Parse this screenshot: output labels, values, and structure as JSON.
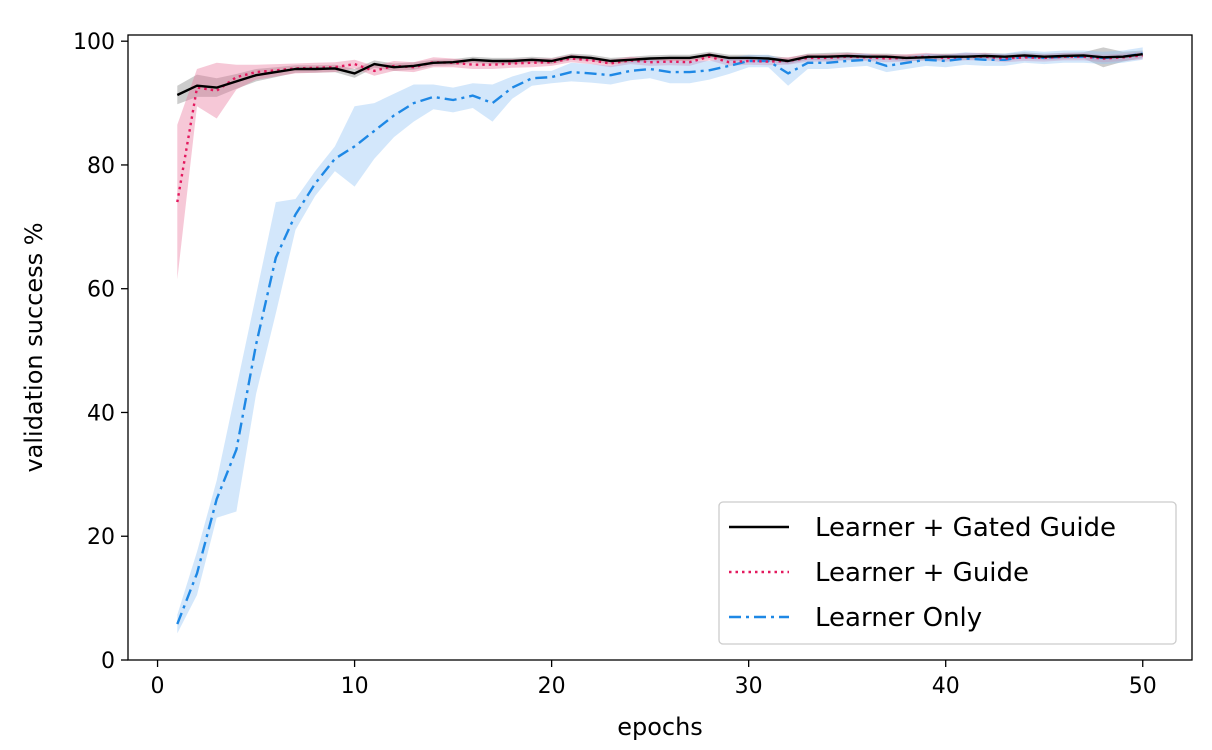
{
  "chart_data": {
    "type": "line",
    "title": "",
    "xlabel": "epochs",
    "ylabel": "validation success %",
    "xlim": [
      -1.5,
      52.5
    ],
    "ylim": [
      0,
      101
    ],
    "xticks": [
      0,
      10,
      20,
      30,
      40,
      50
    ],
    "yticks": [
      0,
      20,
      40,
      60,
      80,
      100
    ],
    "grid": false,
    "legend_position": "lower-right",
    "series": [
      {
        "name": "Learner + Gated Guide",
        "color": "#000000",
        "band_color": "#808080",
        "style": "solid",
        "x": [
          1,
          2,
          3,
          4,
          5,
          6,
          7,
          8,
          9,
          10,
          11,
          12,
          13,
          14,
          15,
          16,
          17,
          18,
          19,
          20,
          21,
          22,
          23,
          24,
          25,
          26,
          27,
          28,
          29,
          30,
          31,
          32,
          33,
          34,
          35,
          36,
          37,
          38,
          39,
          40,
          41,
          42,
          43,
          44,
          45,
          46,
          47,
          48,
          49,
          50
        ],
        "y": [
          91.3,
          92.8,
          92.5,
          93.5,
          94.5,
          95.0,
          95.5,
          95.5,
          95.6,
          94.8,
          96.3,
          95.8,
          96.0,
          96.5,
          96.6,
          97.0,
          96.8,
          96.8,
          97.0,
          96.8,
          97.5,
          97.3,
          96.8,
          97.0,
          97.2,
          97.3,
          97.3,
          97.8,
          97.3,
          97.3,
          97.2,
          96.8,
          97.5,
          97.5,
          97.6,
          97.5,
          97.5,
          97.3,
          97.4,
          97.5,
          97.5,
          97.6,
          97.5,
          97.7,
          97.5,
          97.6,
          97.7,
          97.4,
          97.5,
          97.9
        ],
        "band": [
          1.5,
          1.8,
          1.5,
          1.2,
          1.0,
          0.8,
          0.6,
          0.6,
          0.6,
          0.7,
          0.6,
          0.6,
          0.6,
          0.5,
          0.5,
          0.5,
          0.5,
          0.5,
          0.5,
          0.5,
          0.5,
          0.5,
          0.5,
          0.5,
          0.5,
          0.5,
          0.5,
          0.5,
          0.5,
          0.5,
          0.5,
          0.5,
          0.5,
          0.6,
          0.6,
          0.5,
          0.5,
          0.5,
          0.5,
          0.5,
          0.5,
          0.5,
          0.5,
          0.5,
          0.5,
          0.5,
          0.5,
          1.6,
          0.8,
          0.6
        ]
      },
      {
        "name": "Learner + Guide",
        "color": "#e3195e",
        "band_color": "#e8769c",
        "style": "dotted",
        "x": [
          1,
          2,
          3,
          4,
          5,
          6,
          7,
          8,
          9,
          10,
          11,
          12,
          13,
          14,
          15,
          16,
          17,
          18,
          19,
          20,
          21,
          22,
          23,
          24,
          25,
          26,
          27,
          28,
          29,
          30,
          31,
          32,
          33,
          34,
          35,
          36,
          37,
          38,
          39,
          40,
          41,
          42,
          43,
          44,
          45,
          46,
          47,
          48,
          49,
          50
        ],
        "y": [
          74.0,
          92.5,
          92.0,
          94.2,
          95.0,
          95.3,
          95.6,
          95.7,
          95.8,
          96.3,
          95.2,
          96.0,
          95.8,
          96.6,
          96.5,
          96.2,
          96.2,
          96.4,
          96.5,
          96.6,
          97.2,
          96.9,
          96.4,
          96.9,
          96.6,
          96.7,
          96.6,
          97.5,
          96.6,
          96.8,
          96.7,
          96.8,
          97.3,
          97.3,
          97.5,
          97.4,
          97.2,
          97.3,
          97.5,
          97.3,
          97.5,
          97.5,
          97.2,
          97.4,
          97.3,
          97.5,
          97.5,
          97.2,
          97.4,
          97.7
        ],
        "band": [
          12.5,
          3.0,
          4.5,
          2.0,
          1.2,
          1.0,
          0.8,
          0.8,
          0.8,
          0.7,
          0.8,
          0.8,
          0.8,
          0.8,
          0.7,
          0.7,
          0.7,
          0.7,
          0.7,
          0.6,
          0.6,
          0.6,
          0.6,
          0.6,
          0.6,
          0.6,
          0.6,
          0.6,
          0.6,
          0.6,
          0.6,
          0.6,
          0.6,
          0.6,
          0.6,
          0.6,
          0.6,
          0.6,
          0.6,
          0.6,
          0.6,
          0.6,
          0.6,
          0.6,
          0.6,
          0.6,
          0.6,
          0.6,
          0.6,
          0.6
        ]
      },
      {
        "name": "Learner Only",
        "color": "#1e88e5",
        "band_color": "#90c4f4",
        "style": "dashdot",
        "x": [
          1,
          2,
          3,
          4,
          5,
          6,
          7,
          8,
          9,
          10,
          11,
          12,
          13,
          14,
          15,
          16,
          17,
          18,
          19,
          20,
          21,
          22,
          23,
          24,
          25,
          26,
          27,
          28,
          29,
          30,
          31,
          32,
          33,
          34,
          35,
          36,
          37,
          38,
          39,
          40,
          41,
          42,
          43,
          44,
          45,
          46,
          47,
          48,
          49,
          50
        ],
        "y": [
          5.8,
          14.0,
          26.0,
          34.0,
          51.0,
          65.0,
          72.0,
          77.0,
          81.0,
          83.0,
          85.5,
          88.0,
          90.0,
          91.0,
          90.5,
          91.2,
          90.0,
          92.5,
          94.0,
          94.2,
          95.0,
          94.8,
          94.5,
          95.2,
          95.5,
          95.0,
          95.0,
          95.3,
          96.0,
          96.8,
          96.8,
          94.8,
          96.5,
          96.5,
          96.8,
          97.0,
          96.0,
          96.5,
          97.0,
          96.8,
          97.2,
          97.0,
          97.0,
          97.5,
          97.3,
          97.5,
          97.5,
          97.3,
          97.5,
          98.0
        ],
        "band": [
          1.5,
          3.5,
          3.0,
          10.0,
          8.0,
          9.0,
          2.5,
          2.0,
          2.0,
          6.5,
          4.5,
          3.5,
          3.0,
          2.0,
          2.0,
          2.0,
          3.0,
          1.8,
          1.2,
          1.0,
          1.5,
          1.5,
          1.5,
          1.5,
          1.5,
          1.8,
          1.8,
          1.5,
          1.3,
          1.0,
          1.0,
          2.0,
          1.0,
          1.0,
          1.0,
          1.0,
          1.0,
          1.0,
          1.0,
          1.0,
          1.0,
          1.0,
          1.0,
          1.0,
          1.0,
          1.0,
          1.0,
          1.0,
          1.0,
          1.0
        ]
      }
    ]
  }
}
